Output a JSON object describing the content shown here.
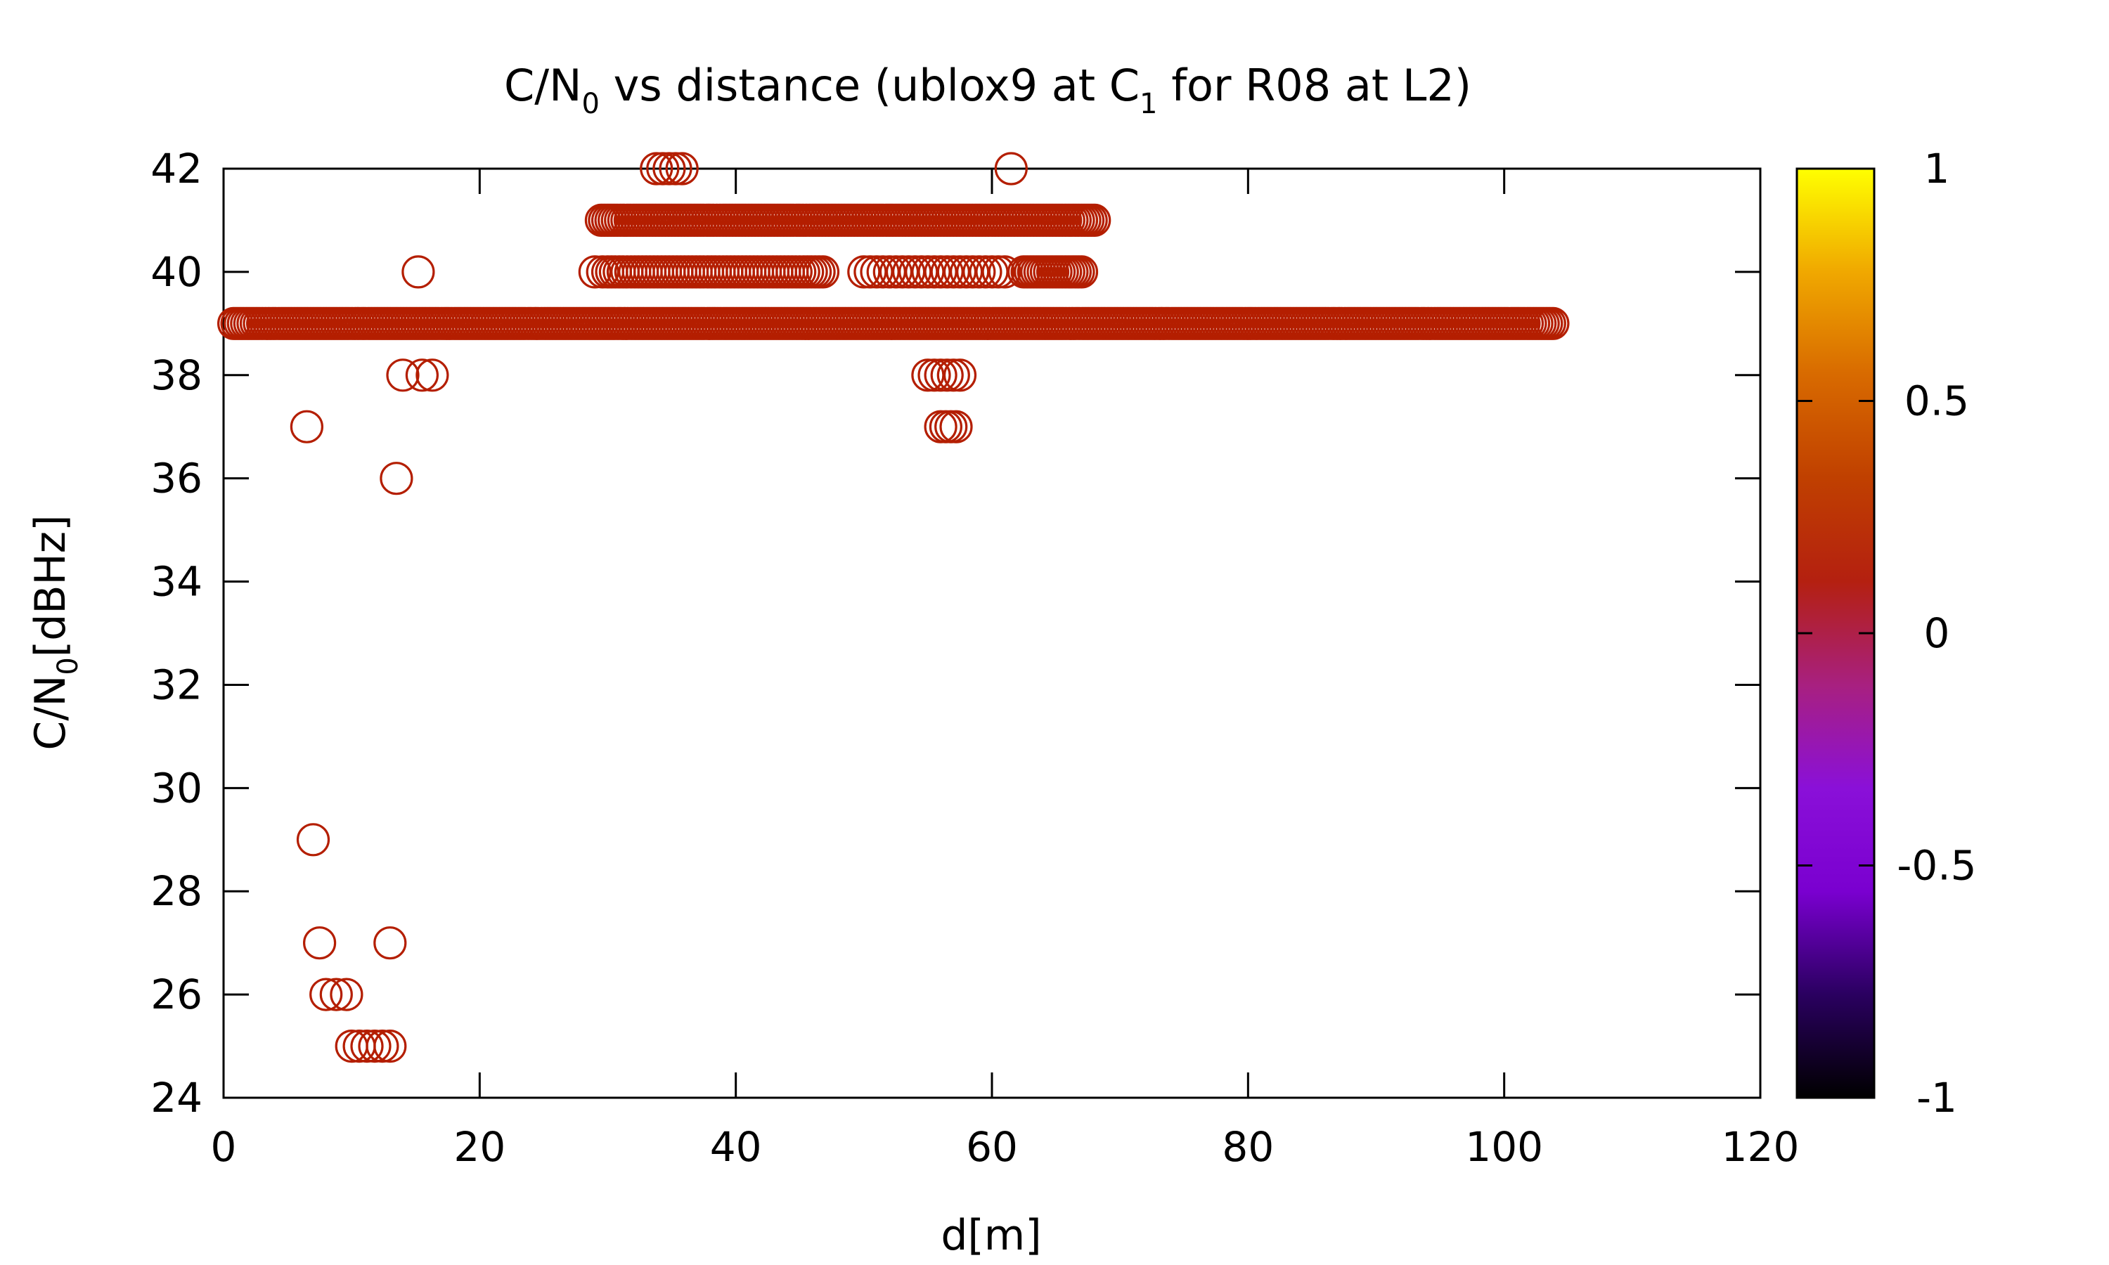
{
  "chart_data": {
    "type": "scatter",
    "title": {
      "pre": "C/N",
      "sub1": "0",
      "mid": " vs distance (ublox9 at C",
      "sub2": "1",
      "post": " for R08 at L2)"
    },
    "xlabel": "d[m]",
    "ylabel": {
      "pre": "C/N",
      "sub": "0",
      "post": "[dBHz]"
    },
    "xlim": [
      0,
      120
    ],
    "ylim": [
      24,
      42
    ],
    "x_ticks": [
      "0",
      "20",
      "40",
      "60",
      "80",
      "100",
      "120"
    ],
    "y_ticks": [
      "24",
      "26",
      "28",
      "30",
      "32",
      "34",
      "36",
      "38",
      "40",
      "42"
    ],
    "grid": false,
    "marker": "open-circle",
    "series_color": "#b41e00",
    "colorbar": {
      "range": [
        -1,
        1
      ],
      "ticks": [
        "1",
        "0.5",
        "0",
        "-0.5",
        "-1"
      ],
      "stops": [
        "#000000",
        "#2a0060",
        "#7a00d0",
        "#8a10d8",
        "#a82080",
        "#b42010",
        "#c04000",
        "#d86a00",
        "#f0a800",
        "#ffff00"
      ]
    },
    "points": [
      {
        "x": 6.5,
        "y": 37
      },
      {
        "x": 7.0,
        "y": 29
      },
      {
        "x": 7.5,
        "y": 27
      },
      {
        "x": 13.0,
        "y": 27
      },
      {
        "x": 8.0,
        "y": 26
      },
      {
        "x": 8.8,
        "y": 26
      },
      {
        "x": 9.6,
        "y": 26
      },
      {
        "x": 10.0,
        "y": 25
      },
      {
        "x": 10.6,
        "y": 25
      },
      {
        "x": 11.2,
        "y": 25
      },
      {
        "x": 11.8,
        "y": 25
      },
      {
        "x": 12.4,
        "y": 25
      },
      {
        "x": 13.0,
        "y": 25
      },
      {
        "x": 13.5,
        "y": 36
      },
      {
        "x": 14.0,
        "y": 38
      },
      {
        "x": 15.5,
        "y": 38
      },
      {
        "x": 16.3,
        "y": 38
      },
      {
        "x": 15.2,
        "y": 40
      },
      {
        "x": 29.0,
        "y": 40
      },
      {
        "x": 29.6,
        "y": 40
      },
      {
        "x": 33.8,
        "y": 42
      },
      {
        "x": 34.3,
        "y": 42
      },
      {
        "x": 34.8,
        "y": 42
      },
      {
        "x": 35.3,
        "y": 42
      },
      {
        "x": 35.8,
        "y": 42
      },
      {
        "x": 61.5,
        "y": 42
      },
      {
        "x": 55.0,
        "y": 38
      },
      {
        "x": 55.5,
        "y": 38
      },
      {
        "x": 56.0,
        "y": 38
      },
      {
        "x": 56.5,
        "y": 38
      },
      {
        "x": 57.0,
        "y": 38
      },
      {
        "x": 57.5,
        "y": 38
      },
      {
        "x": 56.0,
        "y": 37
      },
      {
        "x": 56.4,
        "y": 37
      },
      {
        "x": 56.8,
        "y": 37
      },
      {
        "x": 57.2,
        "y": 37
      }
    ],
    "dense_runs": [
      {
        "y": 39,
        "x_from": 0.8,
        "x_to": 104.0,
        "step": 0.25
      },
      {
        "y": 41,
        "x_from": 29.5,
        "x_to": 68.0,
        "step": 0.25
      },
      {
        "y": 40,
        "x_from": 30.0,
        "x_to": 47.0,
        "step": 0.3
      },
      {
        "x_from": 50.0,
        "x_to": 61.0,
        "step": 0.5,
        "y": 40
      },
      {
        "x_from": 62.5,
        "x_to": 67.0,
        "step": 0.25,
        "y": 40
      }
    ]
  }
}
